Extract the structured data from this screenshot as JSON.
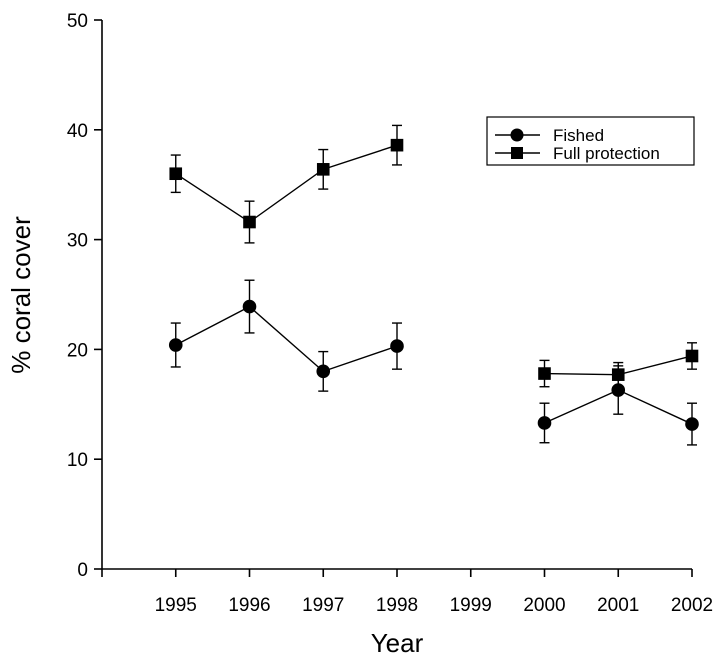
{
  "chart_data": {
    "type": "line",
    "xlabel": "Year",
    "ylabel": "% coral cover",
    "ylim": [
      0,
      50
    ],
    "yticks": [
      0,
      10,
      20,
      30,
      40,
      50
    ],
    "xticks": [
      1995,
      1996,
      1997,
      1998,
      1999,
      2000,
      2001,
      2002
    ],
    "xlim": [
      1994.0,
      2002.0
    ],
    "grid": false,
    "legend_position": "top-right",
    "series": [
      {
        "name": "Fished",
        "marker": "circle",
        "segments": [
          [
            {
              "x": 1995,
              "y": 20.4,
              "err": 2.0
            },
            {
              "x": 1996,
              "y": 23.9,
              "err": 2.4
            },
            {
              "x": 1997,
              "y": 18.0,
              "err": 1.8
            },
            {
              "x": 1998,
              "y": 20.3,
              "err": 2.1
            }
          ],
          [
            {
              "x": 2000,
              "y": 13.3,
              "err": 1.8
            },
            {
              "x": 2001,
              "y": 16.3,
              "err": 2.2
            },
            {
              "x": 2002,
              "y": 13.2,
              "err": 1.9
            }
          ]
        ]
      },
      {
        "name": "Full protection",
        "marker": "square",
        "segments": [
          [
            {
              "x": 1995,
              "y": 36.0,
              "err": 1.7
            },
            {
              "x": 1996,
              "y": 31.6,
              "err": 1.9
            },
            {
              "x": 1997,
              "y": 36.4,
              "err": 1.8
            },
            {
              "x": 1998,
              "y": 38.6,
              "err": 1.8
            }
          ],
          [
            {
              "x": 2000,
              "y": 17.8,
              "err": 1.2
            },
            {
              "x": 2001,
              "y": 17.7,
              "err": 1.1
            },
            {
              "x": 2002,
              "y": 19.4,
              "err": 1.2
            }
          ]
        ]
      }
    ]
  }
}
